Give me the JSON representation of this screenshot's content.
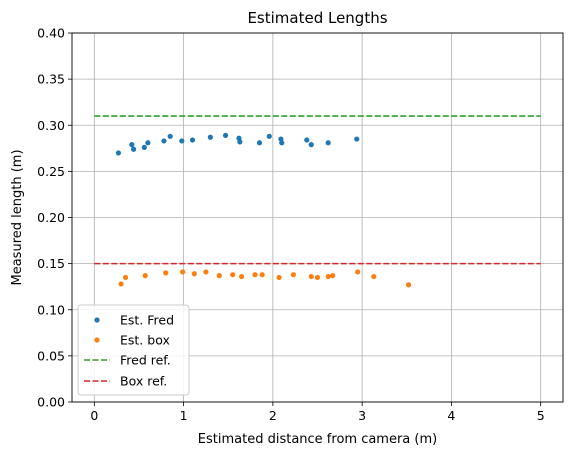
{
  "chart_data": {
    "type": "scatter",
    "title": "Estimated Lengths",
    "xlabel": "Estimated distance from camera (m)",
    "ylabel": "Measured length (m)",
    "xlim": [
      -0.25,
      5.25
    ],
    "ylim": [
      0.0,
      0.4
    ],
    "xticks": [
      0,
      1,
      2,
      3,
      4,
      5
    ],
    "yticks": [
      0.0,
      0.05,
      0.1,
      0.15,
      0.2,
      0.25,
      0.3,
      0.35,
      0.4
    ],
    "xtick_labels": [
      "0",
      "1",
      "2",
      "3",
      "4",
      "5"
    ],
    "ytick_labels": [
      "0.00",
      "0.05",
      "0.10",
      "0.15",
      "0.20",
      "0.25",
      "0.30",
      "0.35",
      "0.40"
    ],
    "grid": true,
    "legend_position": "lower-left",
    "series": [
      {
        "name": "Est. Fred",
        "kind": "points",
        "color": "#1f77b4",
        "x": [
          0.27,
          0.42,
          0.44,
          0.56,
          0.6,
          0.78,
          0.85,
          0.98,
          1.1,
          1.3,
          1.47,
          1.62,
          1.63,
          1.85,
          1.96,
          2.09,
          2.1,
          2.38,
          2.43,
          2.62,
          2.94
        ],
        "y": [
          0.27,
          0.279,
          0.274,
          0.276,
          0.281,
          0.283,
          0.288,
          0.283,
          0.284,
          0.287,
          0.289,
          0.286,
          0.282,
          0.281,
          0.288,
          0.285,
          0.281,
          0.284,
          0.279,
          0.281,
          0.285
        ]
      },
      {
        "name": "Est. box",
        "kind": "points",
        "color": "#ff7f0e",
        "x": [
          0.3,
          0.35,
          0.57,
          0.8,
          0.99,
          1.12,
          1.25,
          1.4,
          1.55,
          1.65,
          1.8,
          1.88,
          2.07,
          2.23,
          2.43,
          2.5,
          2.62,
          2.67,
          2.95,
          3.13,
          3.52
        ],
        "y": [
          0.128,
          0.135,
          0.137,
          0.14,
          0.141,
          0.139,
          0.141,
          0.137,
          0.138,
          0.136,
          0.138,
          0.138,
          0.135,
          0.138,
          0.136,
          0.135,
          0.136,
          0.137,
          0.141,
          0.136,
          0.127
        ]
      },
      {
        "name": "Fred ref.",
        "kind": "dashed-line",
        "color": "#2ca02c",
        "x": [
          0,
          5
        ],
        "y": [
          0.31,
          0.31
        ]
      },
      {
        "name": "Box ref.",
        "kind": "dashed-line",
        "color": "#d62728",
        "x": [
          0,
          5
        ],
        "y": [
          0.15,
          0.15
        ]
      }
    ]
  }
}
